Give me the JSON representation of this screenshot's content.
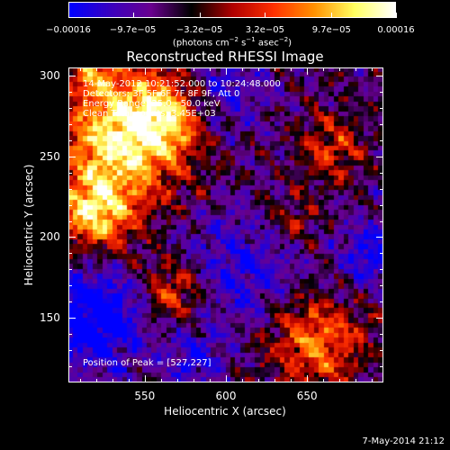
{
  "chart_data": {
    "type": "heatmap",
    "title": "Reconstructed RHESSI Image",
    "xlabel": "Heliocentric X (arcsec)",
    "ylabel": "Heliocentric Y (arcsec)",
    "xlim": [
      503,
      697
    ],
    "ylim": [
      110,
      305
    ],
    "x_ticks": [
      "550",
      "600",
      "650"
    ],
    "x_tick_values": [
      550,
      600,
      650
    ],
    "y_ticks": [
      "150",
      "200",
      "250",
      "300"
    ],
    "y_tick_values": [
      150,
      200,
      250,
      300
    ],
    "colorbar": {
      "ticks": [
        "−0.00016",
        "−9.7e−05",
        "−3.2e−05",
        "3.2e−05",
        "9.7e−05",
        "0.00016"
      ],
      "tick_values": [
        -0.00016,
        -9.7e-05,
        -3.2e-05,
        3.2e-05,
        9.7e-05,
        0.00016
      ],
      "range": [
        -0.00016,
        0.00016
      ],
      "units_main": "(photons cm",
      "units_exp1": "−2",
      "units_mid": " s",
      "units_exp2": "−1",
      "units_end": " asec",
      "units_exp3": "−2",
      "units_close": ")",
      "colormap": [
        "#0000ff",
        "#3a00c0",
        "#6a0090",
        "#000000",
        "#b00000",
        "#ff3000",
        "#ff9000",
        "#ffff60",
        "#ffffff"
      ]
    },
    "peak": [
      527,
      227
    ],
    "bright_regions": [
      {
        "x": 535,
        "y": 260,
        "sigma": 28,
        "amp": 1.0
      },
      {
        "x": 520,
        "y": 215,
        "sigma": 16,
        "amp": 0.9
      },
      {
        "x": 560,
        "y": 275,
        "sigma": 18,
        "amp": 0.7
      },
      {
        "x": 568,
        "y": 165,
        "sigma": 14,
        "amp": 0.6
      },
      {
        "x": 655,
        "y": 135,
        "sigma": 20,
        "amp": 0.75
      },
      {
        "x": 665,
        "y": 255,
        "sigma": 14,
        "amp": 0.5
      },
      {
        "x": 640,
        "y": 210,
        "sigma": 12,
        "amp": 0.35
      },
      {
        "x": 520,
        "y": 300,
        "sigma": 10,
        "amp": 0.5
      }
    ],
    "dark_regions": [
      {
        "x": 520,
        "y": 150,
        "sigma": 22,
        "amp": -0.75
      },
      {
        "x": 610,
        "y": 180,
        "sigma": 25,
        "amp": -0.45
      },
      {
        "x": 600,
        "y": 290,
        "sigma": 18,
        "amp": -0.4
      },
      {
        "x": 690,
        "y": 190,
        "sigma": 15,
        "amp": -0.5
      },
      {
        "x": 580,
        "y": 125,
        "sigma": 15,
        "amp": -0.35
      }
    ]
  },
  "annotations": [
    "14-May-2012 10:21:52.000 to 10:24:48.000",
    "Detectors: 3F 5F 6F 7F 8F 9F, Att 0",
    "Energy Range: 25.0 - 50.0 keV",
    "Clean     Total counts: 3.45E+03"
  ],
  "peak_label": "Position of Peak = [527,227]",
  "footer": "7-May-2014 21:12"
}
